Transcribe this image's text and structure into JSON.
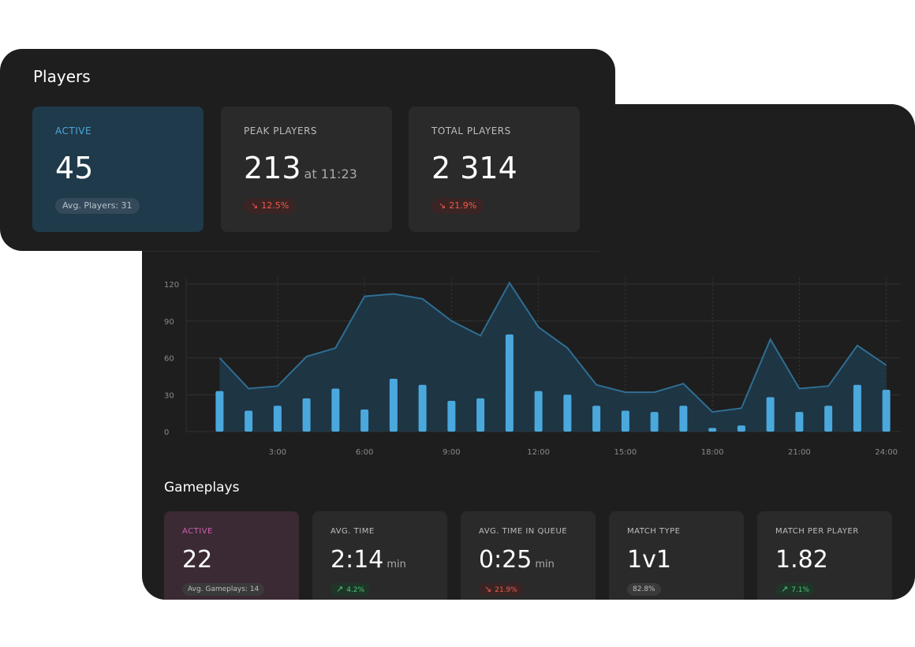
{
  "players": {
    "title": "Players",
    "active": {
      "label": "ACTIVE",
      "value": "45",
      "pill": "Avg. Players: 31"
    },
    "peak": {
      "label": "PEAK PLAYERS",
      "value": "213",
      "suffix": "at 11:23",
      "change": "12.5%",
      "direction": "down"
    },
    "total": {
      "label": "TOTAL PLAYERS",
      "value": "2 314",
      "change": "21.9%",
      "direction": "down"
    }
  },
  "chart_data": {
    "type": "bar",
    "y_ticks": [
      "0",
      "30",
      "60",
      "90",
      "120"
    ],
    "ylim": [
      0,
      120
    ],
    "x_ticks": [
      "3:00",
      "6:00",
      "9:00",
      "12:00",
      "15:00",
      "18:00",
      "21:00",
      "24:00"
    ],
    "grid": true,
    "x": [
      1,
      2,
      3,
      4,
      5,
      6,
      7,
      8,
      9,
      10,
      11,
      12,
      13,
      14,
      15,
      16,
      17,
      18,
      19,
      20,
      21,
      22,
      23,
      24
    ],
    "series": [
      {
        "type": "bar",
        "values": [
          33,
          17,
          21,
          27,
          35,
          18,
          43,
          38,
          25,
          27,
          79,
          33,
          30,
          21,
          17,
          16,
          21,
          3,
          5,
          28,
          16,
          21,
          38,
          34
        ]
      },
      {
        "type": "area",
        "values": [
          60,
          35,
          37,
          61,
          68,
          110,
          112,
          108,
          90,
          78,
          121,
          85,
          68,
          38,
          32,
          32,
          39,
          16,
          19,
          75,
          35,
          37,
          70,
          54
        ]
      }
    ],
    "colors": {
      "bar": "#4aa8dc",
      "area_line": "#2f6e93",
      "area_fill": "#1e3a4b"
    }
  },
  "gameplays": {
    "title": "Gameplays",
    "active": {
      "label": "ACTIVE",
      "value": "22",
      "pill": "Avg. Gameplays: 14"
    },
    "avg_time": {
      "label": "AVG. TIME",
      "value": "2:14",
      "suffix": "min",
      "change": "4.2%",
      "direction": "up"
    },
    "queue": {
      "label": "AVG. TIME IN QUEUE",
      "value": "0:25",
      "suffix": "min",
      "change": "21.9%",
      "direction": "down"
    },
    "match_type": {
      "label": "MATCH TYPE",
      "value": "1v1",
      "pill": "82.8%"
    },
    "match_per_player": {
      "label": "MATCH PER PLAYER",
      "value": "1.82",
      "change": "7.1%",
      "direction": "up"
    }
  },
  "icons": {
    "down": "arrow-down-right-icon",
    "up": "arrow-up-right-icon"
  },
  "colors": {
    "active_players": "#4aa8dc",
    "active_gameplays": "#d05fb6",
    "down": "#ef5b4c",
    "up": "#48c77a"
  }
}
